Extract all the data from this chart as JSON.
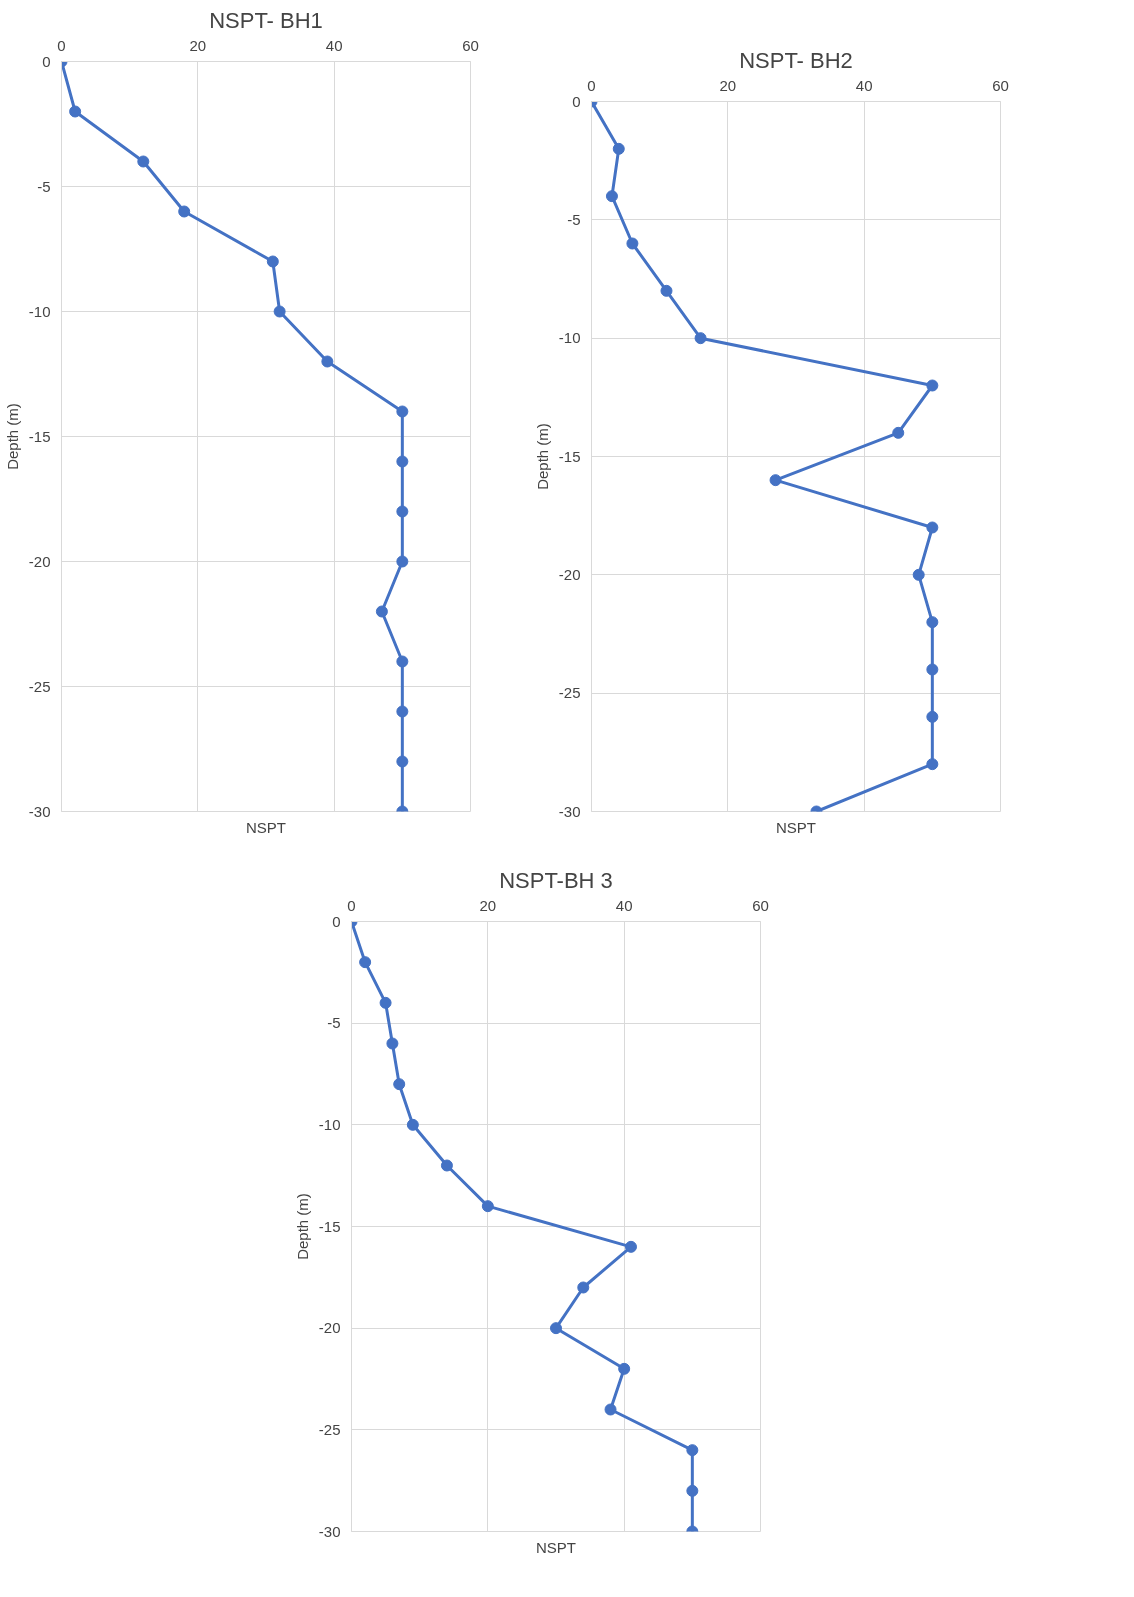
{
  "chart_data": [
    {
      "type": "line",
      "title": "NSPT- BH1",
      "xlabel": "NSPT",
      "ylabel": "Depth (m)",
      "xlim": [
        0,
        60
      ],
      "xticks": [
        0,
        20,
        40,
        60
      ],
      "ylim": [
        -30,
        0
      ],
      "yticks": [
        -30,
        -25,
        -20,
        -15,
        -10,
        -5,
        0
      ],
      "grid": true,
      "marker": "circle",
      "line_style": "solid",
      "series": [
        {
          "color": "#4472c4",
          "x": [
            0,
            2,
            12,
            18,
            31,
            32,
            39,
            50,
            50,
            50,
            50,
            47,
            50,
            50,
            50,
            50
          ],
          "values": [
            0,
            -2,
            -4,
            -6,
            -8,
            -10,
            -12,
            -14,
            -16,
            -18,
            -20,
            -22,
            -24,
            -26,
            -28,
            -30
          ]
        }
      ]
    },
    {
      "type": "line",
      "title": "NSPT- BH2",
      "xlabel": "NSPT",
      "ylabel": "Depth (m)",
      "xlim": [
        0,
        60
      ],
      "xticks": [
        0,
        20,
        40,
        60
      ],
      "ylim": [
        -30,
        0
      ],
      "yticks": [
        -30,
        -25,
        -20,
        -15,
        -10,
        -5,
        0
      ],
      "grid": true,
      "marker": "circle",
      "line_style": "solid",
      "series": [
        {
          "color": "#4472c4",
          "x": [
            0,
            4,
            3,
            6,
            11,
            16,
            50,
            45,
            27,
            50,
            48,
            50,
            50,
            50,
            50,
            33
          ],
          "values": [
            0,
            -2,
            -4,
            -6,
            -8,
            -10,
            -12,
            -14,
            -16,
            -18,
            -20,
            -22,
            -24,
            -26,
            -28,
            -30
          ]
        }
      ]
    },
    {
      "type": "line",
      "title": "NSPT-BH 3",
      "xlabel": "NSPT",
      "ylabel": "Depth (m)",
      "xlim": [
        0,
        60
      ],
      "xticks": [
        0,
        20,
        40,
        60
      ],
      "ylim": [
        -30,
        0
      ],
      "yticks": [
        -30,
        -25,
        -20,
        -15,
        -10,
        -5,
        0
      ],
      "grid": true,
      "marker": "circle",
      "line_style": "solid",
      "series": [
        {
          "color": "#4472c4",
          "x": [
            0,
            2,
            5,
            6,
            7,
            9,
            14,
            20,
            41,
            34,
            30,
            40,
            38,
            50,
            50,
            50
          ],
          "values": [
            0,
            -2,
            -4,
            -6,
            -8,
            -10,
            -12,
            -14,
            -16,
            -18,
            -20,
            -22,
            -24,
            -26,
            -28,
            -30
          ]
        }
      ]
    }
  ]
}
